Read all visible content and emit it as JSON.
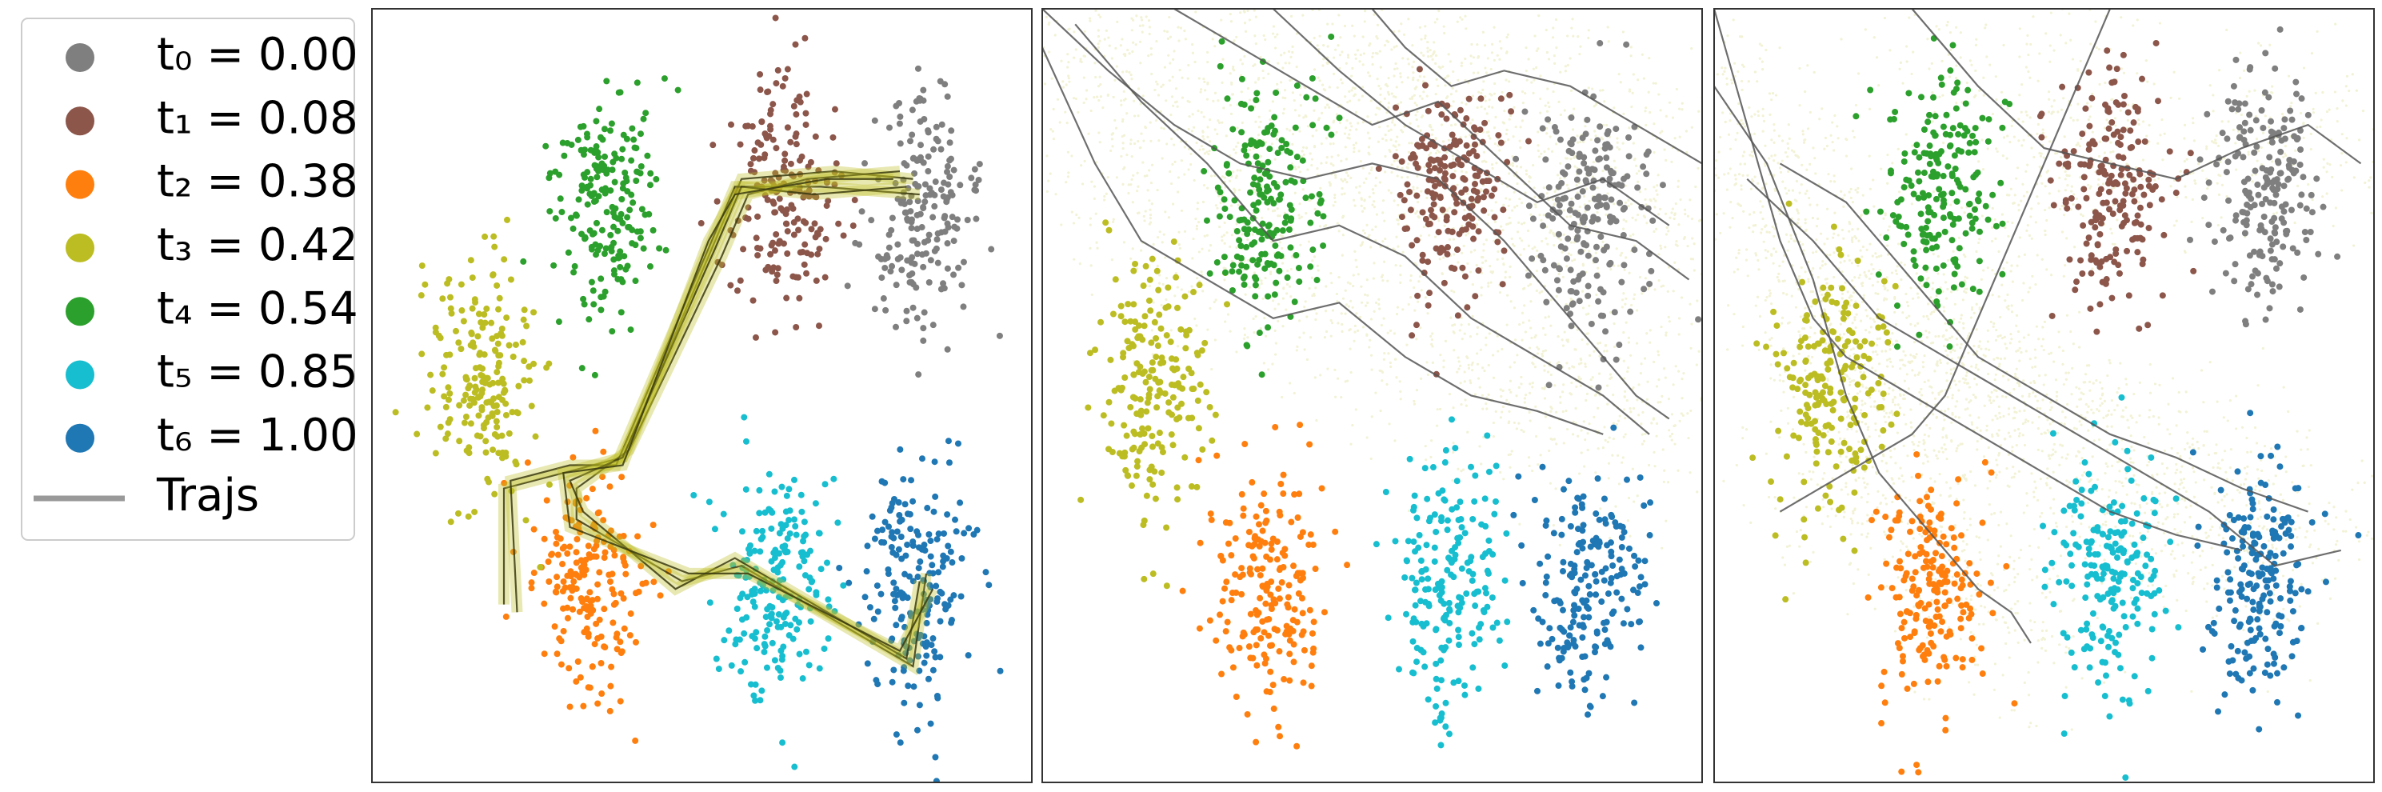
{
  "legend": {
    "series": [
      {
        "name": "t₀ = 0.00",
        "color": "#7f7f7f"
      },
      {
        "name": "t₁ = 0.08",
        "color": "#8c564b"
      },
      {
        "name": "t₂ = 0.38",
        "color": "#ff7f0e"
      },
      {
        "name": "t₃ = 0.42",
        "color": "#bcbd22"
      },
      {
        "name": "t₄ = 0.54",
        "color": "#2ca02c"
      },
      {
        "name": "t₅ = 0.85",
        "color": "#17becf"
      },
      {
        "name": "t₆ = 1.00",
        "color": "#1f77b4"
      }
    ],
    "trajs": "Trajs",
    "trajs_color": "#999999"
  },
  "chart_data": [
    {
      "type": "scatter",
      "xlim": [
        0,
        100
      ],
      "ylim": [
        0,
        100
      ],
      "fog": false,
      "clusters": [
        {
          "x": 83,
          "y": 73
        },
        {
          "x": 62,
          "y": 77
        },
        {
          "x": 33,
          "y": 25
        },
        {
          "x": 17,
          "y": 52
        },
        {
          "x": 35,
          "y": 75
        },
        {
          "x": 61,
          "y": 26
        },
        {
          "x": 83,
          "y": 26
        }
      ],
      "trajs": [
        {
          "x": [
            82,
            70,
            56,
            52,
            38,
            29,
            20,
            20
          ],
          "y": [
            78,
            79,
            78,
            70,
            42,
            40,
            38,
            23
          ]
        },
        {
          "x": [
            83,
            68,
            55,
            51,
            37,
            30,
            21,
            22
          ],
          "y": [
            76,
            77,
            77,
            69,
            41,
            41,
            39,
            22
          ]
        },
        {
          "x": [
            80,
            66,
            57,
            53,
            39,
            31,
            31,
            47,
            56,
            82,
            84
          ],
          "y": [
            79,
            78,
            76,
            68,
            43,
            38,
            34,
            26,
            28,
            15,
            27
          ]
        },
        {
          "x": [
            81,
            67,
            56,
            52,
            38,
            30,
            32,
            46,
            55,
            81,
            83
          ],
          "y": [
            77,
            76,
            77,
            69,
            42,
            39,
            35,
            25,
            29,
            16,
            26
          ]
        },
        {
          "x": [
            79,
            69,
            55,
            51,
            38,
            29,
            30,
            48,
            57,
            80,
            85
          ],
          "y": [
            78,
            78,
            76,
            70,
            41,
            40,
            33,
            27,
            27,
            17,
            25
          ]
        }
      ]
    },
    {
      "type": "scatter",
      "xlim": [
        0,
        100
      ],
      "ylim": [
        0,
        100
      ],
      "fog": true,
      "clusters": [
        {
          "x": 83,
          "y": 74
        },
        {
          "x": 62,
          "y": 76
        },
        {
          "x": 34,
          "y": 25
        },
        {
          "x": 17,
          "y": 51
        },
        {
          "x": 34,
          "y": 75
        },
        {
          "x": 62,
          "y": 26
        },
        {
          "x": 83,
          "y": 26
        }
      ],
      "trajs": [
        {
          "x": [
            0,
            10,
            20,
            30,
            40,
            50,
            60,
            70,
            80,
            90,
            95
          ],
          "y": [
            100,
            92,
            85,
            80,
            78,
            80,
            78,
            70,
            60,
            50,
            47
          ]
        },
        {
          "x": [
            0,
            8,
            15,
            25,
            35,
            45,
            55,
            65,
            75,
            85
          ],
          "y": [
            95,
            80,
            70,
            65,
            60,
            62,
            55,
            50,
            48,
            45
          ]
        },
        {
          "x": [
            20,
            30,
            40,
            50,
            60,
            70,
            80,
            90,
            98
          ],
          "y": [
            100,
            95,
            90,
            85,
            88,
            80,
            72,
            70,
            65
          ]
        },
        {
          "x": [
            50,
            55,
            62,
            70,
            80,
            90,
            100
          ],
          "y": [
            100,
            95,
            90,
            92,
            90,
            85,
            80
          ]
        },
        {
          "x": [
            5,
            15,
            25,
            35,
            45,
            55,
            65,
            75,
            85,
            92
          ],
          "y": [
            98,
            88,
            80,
            70,
            72,
            68,
            60,
            55,
            50,
            45
          ]
        },
        {
          "x": [
            35,
            45,
            55,
            65,
            75,
            85,
            95
          ],
          "y": [
            100,
            92,
            85,
            80,
            75,
            78,
            72
          ]
        }
      ]
    },
    {
      "type": "scatter",
      "xlim": [
        0,
        100
      ],
      "ylim": [
        0,
        100
      ],
      "fog": true,
      "clusters": [
        {
          "x": 83,
          "y": 76
        },
        {
          "x": 60,
          "y": 76
        },
        {
          "x": 33,
          "y": 25
        },
        {
          "x": 18,
          "y": 51
        },
        {
          "x": 34,
          "y": 77
        },
        {
          "x": 60,
          "y": 27
        },
        {
          "x": 83,
          "y": 26
        }
      ],
      "trajs": [
        {
          "x": [
            0,
            5,
            10,
            15,
            20,
            30,
            40,
            50,
            60,
            70,
            80
          ],
          "y": [
            100,
            85,
            70,
            60,
            55,
            50,
            45,
            40,
            35,
            32,
            30
          ]
        },
        {
          "x": [
            0,
            8,
            15,
            20,
            25,
            30,
            35,
            40,
            45,
            48
          ],
          "y": [
            90,
            80,
            65,
            50,
            40,
            35,
            30,
            25,
            22,
            18
          ]
        },
        {
          "x": [
            10,
            20,
            30,
            40,
            50,
            60,
            70,
            80,
            90
          ],
          "y": [
            80,
            75,
            65,
            55,
            50,
            45,
            42,
            38,
            35
          ]
        },
        {
          "x": [
            30,
            40,
            50,
            60,
            70,
            80,
            90,
            98
          ],
          "y": [
            100,
            90,
            82,
            80,
            78,
            82,
            85,
            80
          ]
        },
        {
          "x": [
            5,
            15,
            25,
            35,
            45,
            55,
            65,
            75,
            85,
            95
          ],
          "y": [
            78,
            70,
            60,
            55,
            50,
            45,
            40,
            35,
            28,
            30
          ]
        },
        {
          "x": [
            60,
            55,
            50,
            45,
            40,
            35,
            30,
            20,
            10
          ],
          "y": [
            100,
            90,
            80,
            70,
            60,
            50,
            45,
            40,
            35
          ]
        }
      ]
    }
  ]
}
